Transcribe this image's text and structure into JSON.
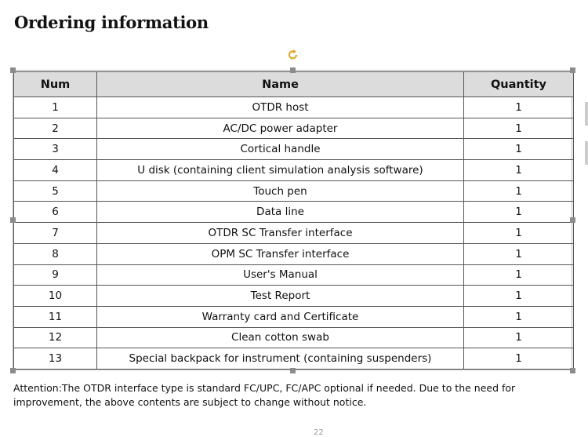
{
  "header": {
    "title": "Ordering information"
  },
  "table": {
    "columns": [
      "Num",
      "Name",
      "Quantity"
    ],
    "rows": [
      [
        "1",
        "OTDR host",
        "1"
      ],
      [
        "2",
        "AC/DC power adapter",
        "1"
      ],
      [
        "3",
        "Cortical handle",
        "1"
      ],
      [
        "4",
        "U disk (containing client simulation analysis software)",
        "1"
      ],
      [
        "5",
        "Touch pen",
        "1"
      ],
      [
        "6",
        "Data line",
        "1"
      ],
      [
        "7",
        "OTDR SC Transfer interface",
        "1"
      ],
      [
        "8",
        "OPM SC Transfer interface",
        "1"
      ],
      [
        "9",
        "User's Manual",
        "1"
      ],
      [
        "10",
        "Test Report",
        "1"
      ],
      [
        "11",
        "Warranty card and Certificate",
        "1"
      ],
      [
        "12",
        "Clean cotton swab",
        "1"
      ],
      [
        "13",
        "Special backpack for instrument (containing suspenders)",
        "1"
      ]
    ]
  },
  "note": {
    "line1": "Attention:The OTDR interface type is standard FC/UPC, FC/APC optional if needed. Due to the need for",
    "line2": "improvement, the above contents are subject to change without notice."
  },
  "footer": {
    "page_number": "22"
  }
}
